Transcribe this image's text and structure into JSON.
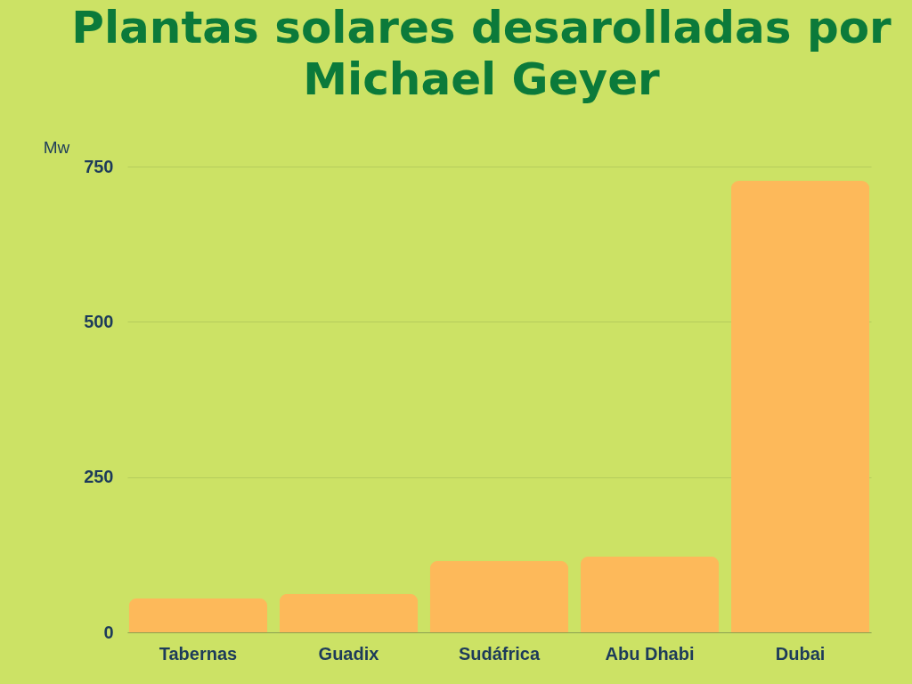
{
  "chart_data": {
    "type": "bar",
    "title": "Plantas solares desarolladas por Michael Geyer",
    "ylabel": "Mw",
    "categories": [
      "Tabernas",
      "Guadix",
      "Sudáfrica",
      "Abu Dhabi",
      "Dubai"
    ],
    "values": [
      55,
      62,
      115,
      122,
      727
    ],
    "color": "#fdb95a",
    "ylim": [
      0,
      750
    ],
    "yticks": [
      0,
      250,
      500,
      750
    ],
    "grid": "y"
  }
}
